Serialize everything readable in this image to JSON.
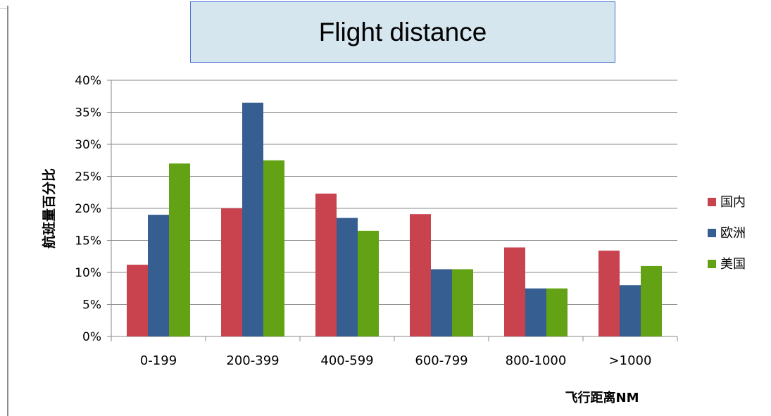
{
  "title": "Flight distance",
  "chart_data": {
    "type": "bar",
    "categories": [
      "0-199",
      "200-399",
      "400-599",
      "600-799",
      "800-1000",
      ">1000"
    ],
    "series": [
      {
        "name": "国内",
        "color": "#c9434f",
        "values": [
          11.2,
          20.0,
          22.3,
          19.1,
          13.9,
          13.4
        ]
      },
      {
        "name": "欧洲",
        "color": "#365e91",
        "values": [
          19.0,
          36.5,
          18.5,
          10.5,
          7.5,
          8.0
        ]
      },
      {
        "name": "美国",
        "color": "#63a215",
        "values": [
          27.0,
          27.5,
          16.5,
          10.5,
          7.5,
          11.0
        ]
      }
    ],
    "ylim": [
      0,
      40
    ],
    "yticks": [
      "0%",
      "5%",
      "10%",
      "15%",
      "20%",
      "25%",
      "30%",
      "35%",
      "40%"
    ],
    "ylabel": "航班量百分比",
    "xlabel": "飞行距离NM",
    "grid": true,
    "legend_position": "right"
  }
}
